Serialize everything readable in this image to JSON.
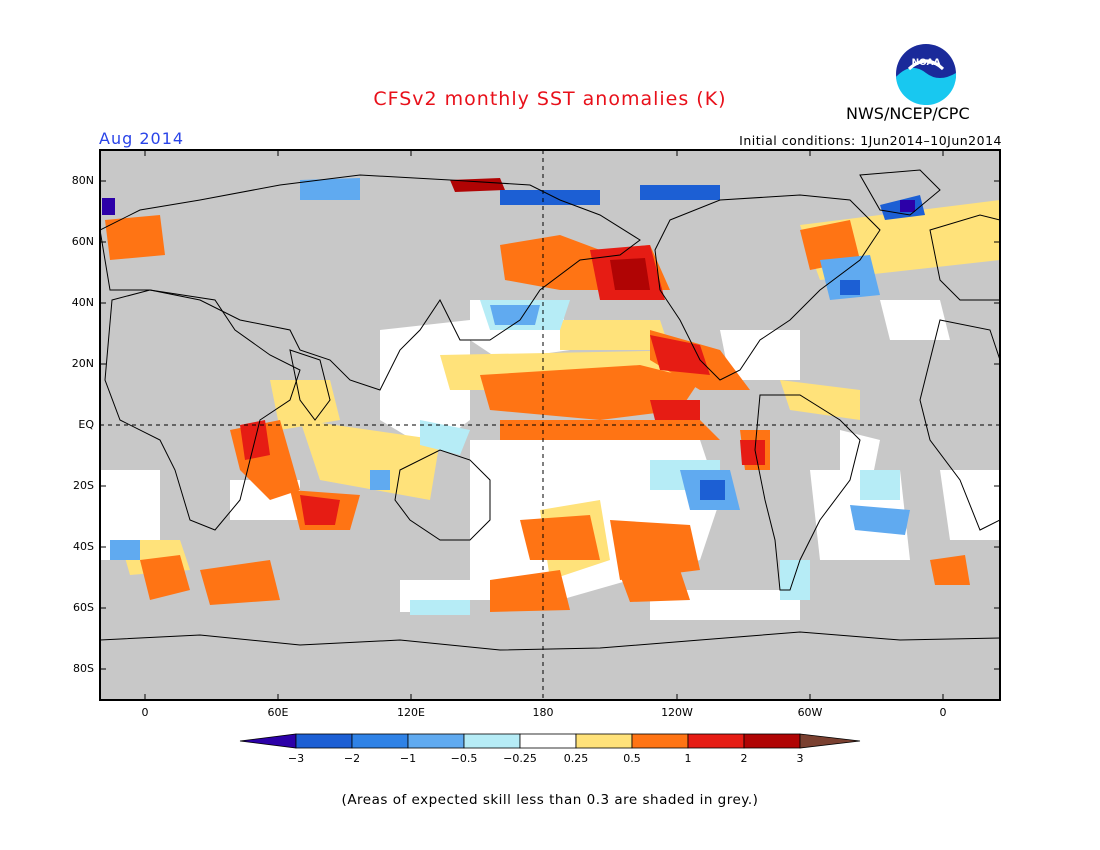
{
  "header": {
    "title": "CFSv2 monthly SST anomalies (K)",
    "month": "Aug 2014",
    "initial_conditions": "Initial conditions: 1Jun2014–10Jun2014",
    "agency": "NWS/NCEP/CPC",
    "logo_text": "NOAA"
  },
  "axes": {
    "lat_labels": [
      "80N",
      "60N",
      "40N",
      "20N",
      "EQ",
      "20S",
      "40S",
      "60S",
      "80S"
    ],
    "lon_labels": [
      "0",
      "60E",
      "120E",
      "180",
      "120W",
      "60W",
      "0"
    ]
  },
  "colorbar": {
    "labels": [
      "−3",
      "−2",
      "−1",
      "−0.5",
      "−0.25",
      "0.25",
      "0.5",
      "1",
      "2",
      "3"
    ],
    "colors": [
      "#2c00a8",
      "#1c5fd4",
      "#2f82e6",
      "#60aaf0",
      "#b6ecf6",
      "#ffffff",
      "#ffe27a",
      "#ff7414",
      "#e61c14",
      "#b00404",
      "#7a4030"
    ]
  },
  "legend_colors": {
    "land": "#c8c8c8",
    "low_skill": "#c0c0c0",
    "ocean_neutral": "#ffffff"
  },
  "footnote": "(Areas of expected skill less than 0.3 are shaded in grey.)"
}
